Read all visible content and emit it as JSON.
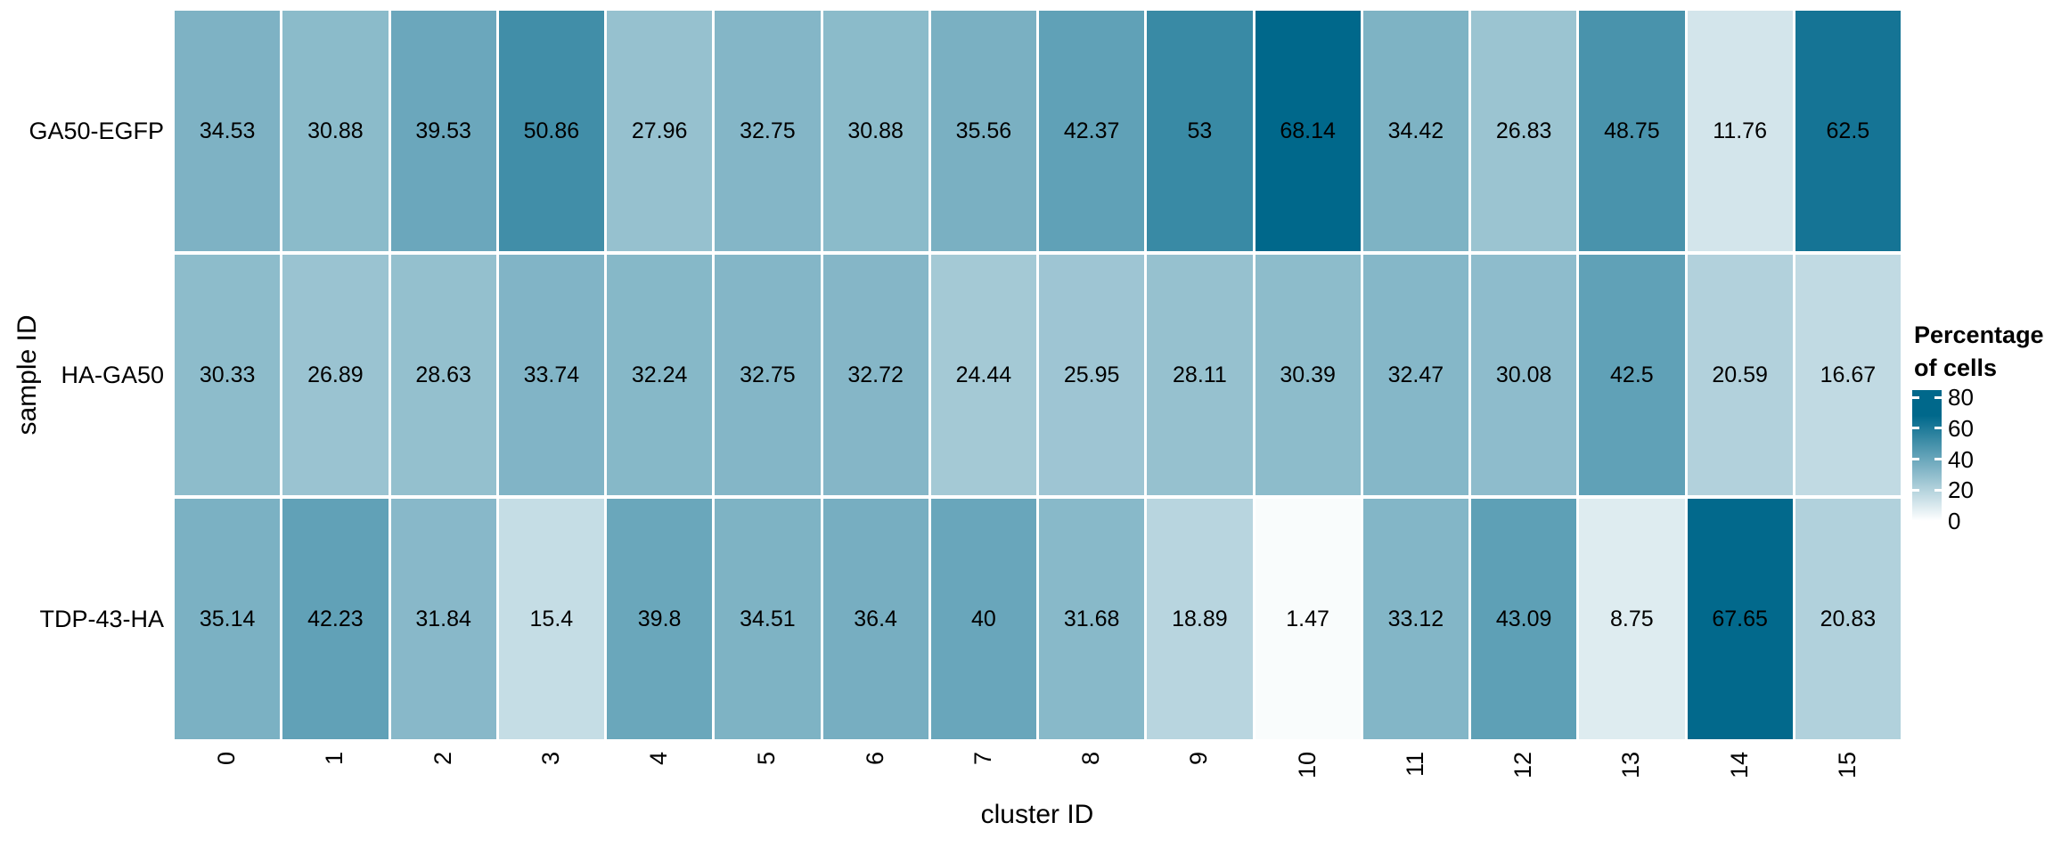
{
  "chart_data": {
    "type": "heatmap",
    "title": "",
    "xlabel": "cluster ID",
    "ylabel": "sample ID",
    "categories": [
      "0",
      "1",
      "2",
      "3",
      "4",
      "5",
      "6",
      "7",
      "8",
      "9",
      "10",
      "11",
      "12",
      "13",
      "14",
      "15"
    ],
    "rows": [
      "GA50-EGFP",
      "HA-GA50",
      "TDP-43-HA"
    ],
    "series": [
      {
        "name": "GA50-EGFP",
        "values": [
          34.53,
          30.88,
          39.53,
          50.86,
          27.96,
          32.75,
          30.88,
          35.56,
          42.37,
          53,
          68.14,
          34.42,
          26.83,
          48.75,
          11.76,
          62.5
        ]
      },
      {
        "name": "HA-GA50",
        "values": [
          30.33,
          26.89,
          28.63,
          33.74,
          32.24,
          32.75,
          32.72,
          24.44,
          25.95,
          28.11,
          30.39,
          32.47,
          30.08,
          42.5,
          20.59,
          16.67
        ]
      },
      {
        "name": "TDP-43-HA",
        "values": [
          35.14,
          42.23,
          31.84,
          15.4,
          39.8,
          34.51,
          36.4,
          40,
          31.68,
          18.89,
          1.47,
          33.12,
          43.09,
          8.75,
          67.65,
          20.83
        ]
      }
    ],
    "legend": {
      "title_line1": "Percentage",
      "title_line2": "of cells",
      "ticks": [
        80,
        60,
        40,
        20,
        0
      ],
      "min": 0,
      "max": 80,
      "legend_position": "right"
    },
    "colors": {
      "low": "#FFFFFF",
      "high": "#00688B"
    },
    "color_domain_max": 68.14,
    "grid": "off"
  }
}
